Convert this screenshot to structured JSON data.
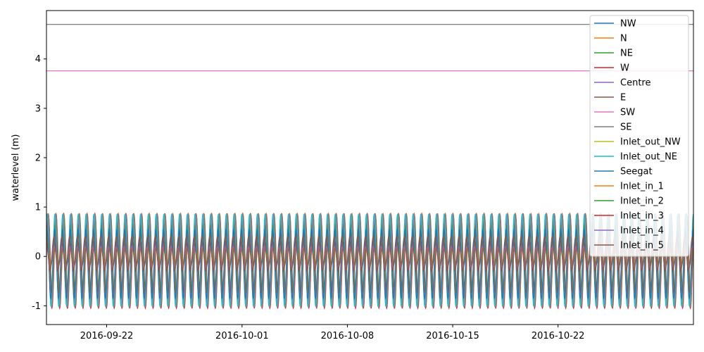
{
  "chart_data": {
    "type": "line",
    "title": "",
    "xlabel": "",
    "ylabel": "waterlevel (m)",
    "x_range": [
      "2016-09-18",
      "2016-10-31"
    ],
    "ylim": [
      -1.38,
      4.98
    ],
    "x_ticks": [
      "2016-09-22",
      "2016-10-01",
      "2016-10-08",
      "2016-10-15",
      "2016-10-22"
    ],
    "y_ticks": [
      -1,
      0,
      1,
      2,
      3,
      4
    ],
    "grid": false,
    "legend_position": "top-right",
    "tide_period_hours": 12.42,
    "series": [
      {
        "name": "NW",
        "color": "#1f77b4",
        "mean": 0.0,
        "amplitude": 0.85
      },
      {
        "name": "N",
        "color": "#ff7f0e",
        "mean": -0.08,
        "amplitude": 0.95
      },
      {
        "name": "NE",
        "color": "#2ca02c",
        "mean": -0.08,
        "amplitude": 0.93
      },
      {
        "name": "W",
        "color": "#d62728",
        "mean": -0.1,
        "amplitude": 0.95
      },
      {
        "name": "Centre",
        "color": "#9467bd",
        "mean": -0.08,
        "amplitude": 0.94
      },
      {
        "name": "E",
        "color": "#8c564b",
        "mean": -0.05,
        "amplitude": 0.7
      },
      {
        "name": "SW",
        "color": "#e377c2",
        "constant": 3.76
      },
      {
        "name": "SE",
        "color": "#7f7f7f",
        "constant": 4.7
      },
      {
        "name": "Inlet_out_NW",
        "color": "#bcbd22",
        "mean": -0.08,
        "amplitude": 0.93
      },
      {
        "name": "Inlet_out_NE",
        "color": "#17becf",
        "mean": -0.08,
        "amplitude": 0.93
      },
      {
        "name": "Seegat",
        "color": "#1f77b4",
        "mean": -0.15,
        "amplitude": 0.7
      },
      {
        "name": "Inlet_in_1",
        "color": "#ff7f0e",
        "mean": 0.0,
        "amplitude": 0.2
      },
      {
        "name": "Inlet_in_2",
        "color": "#2ca02c",
        "mean": 0.0,
        "amplitude": 0.2
      },
      {
        "name": "Inlet_in_3",
        "color": "#d62728",
        "mean": 0.0,
        "amplitude": 0.2
      },
      {
        "name": "Inlet_in_4",
        "color": "#9467bd",
        "mean": 0.0,
        "amplitude": 0.2
      },
      {
        "name": "Inlet_in_5",
        "color": "#8c564b",
        "mean": 0.05,
        "amplitude": 0.35
      }
    ]
  }
}
